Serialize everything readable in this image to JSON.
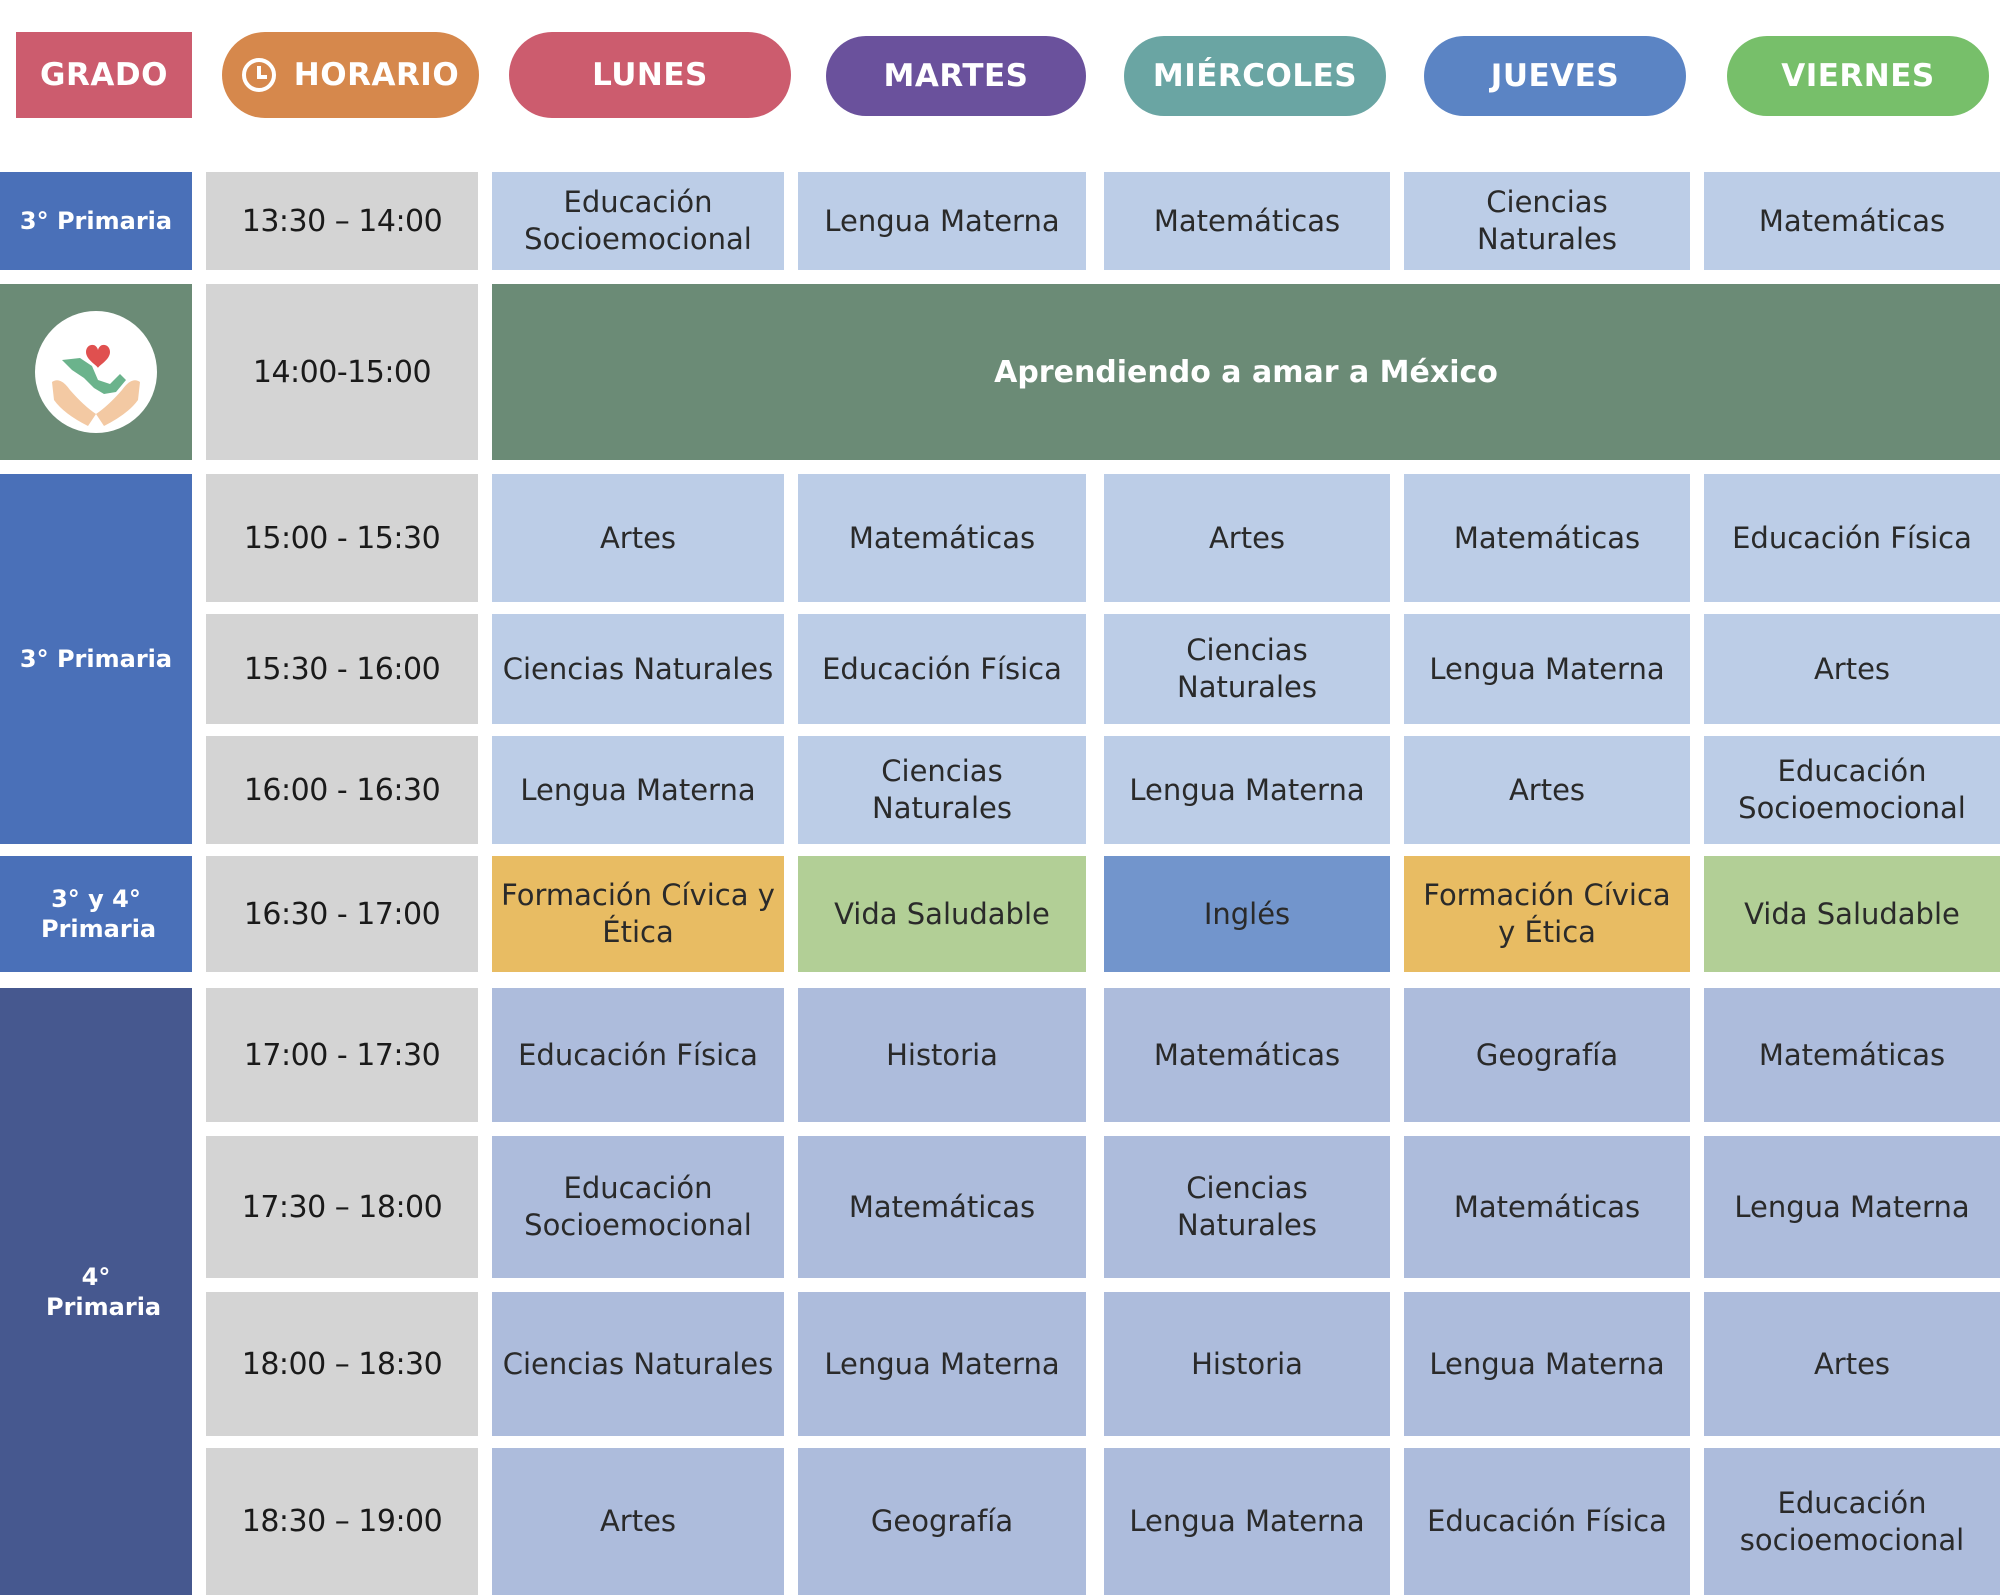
{
  "header": {
    "grado": "GRADO",
    "horario": "HORARIO",
    "days": [
      "LUNES",
      "MARTES",
      "MIÉRCOLES",
      "JUEVES",
      "VIERNES"
    ]
  },
  "colors": {
    "grado": "#cc5c6e",
    "horario": "#d6884c",
    "lunes": "#cc5c6e",
    "martes": "#6a519c",
    "miercoles": "#6aa5a3",
    "jueves": "#5b84c4",
    "viernes": "#77bf6a",
    "grade_3": "#4a70b8",
    "grade_3y4": "#4a70b8",
    "grade_4": "#46588f",
    "cell_3": "#bccde7",
    "cell_4": "#adbcdc",
    "banner": "#6b8b76",
    "civica": "#e8bc63",
    "saludable": "#b2cf96",
    "ingles": "#7295cc"
  },
  "grades": {
    "g1": "3° Primaria",
    "g2": "3° Primaria",
    "g3": "3° y 4° Primaria",
    "g4": "4° Primaria"
  },
  "banner": "Aprendiendo a amar a México",
  "rows": [
    {
      "time": "13:30 – 14:00",
      "cells": [
        "Educación Socioemocional",
        "Lengua Materna",
        "Matemáticas",
        "Ciencias Naturales",
        "Matemáticas"
      ]
    },
    {
      "time": "14:00-15:00",
      "cells": []
    },
    {
      "time": "15:00 - 15:30",
      "cells": [
        "Artes",
        "Matemáticas",
        "Artes",
        "Matemáticas",
        "Educación Física"
      ]
    },
    {
      "time": "15:30 - 16:00",
      "cells": [
        "Ciencias Naturales",
        "Educación Física",
        "Ciencias Naturales",
        "Lengua Materna",
        "Artes"
      ]
    },
    {
      "time": "16:00 - 16:30",
      "cells": [
        "Lengua Materna",
        "Ciencias Naturales",
        "Lengua Materna",
        "Artes",
        "Educación Socioemocional"
      ]
    },
    {
      "time": "16:30 - 17:00",
      "cells": [
        "Formación Cívica y Ética",
        "Vida Saludable",
        "Inglés",
        "Formación Cívica y Ética",
        "Vida Saludable"
      ]
    },
    {
      "time": "17:00 - 17:30",
      "cells": [
        "Educación Física",
        "Historia",
        "Matemáticas",
        "Geografía",
        "Matemáticas"
      ]
    },
    {
      "time": "17:30 – 18:00",
      "cells": [
        "Educación Socioemocional",
        "Matemáticas",
        "Ciencias Naturales",
        "Matemáticas",
        "Lengua Materna"
      ]
    },
    {
      "time": "18:00 – 18:30",
      "cells": [
        "Ciencias Naturales",
        "Lengua Materna",
        "Historia",
        "Lengua Materna",
        "Artes"
      ]
    },
    {
      "time": "18:30 – 19:00",
      "cells": [
        "Artes",
        "Geografía",
        "Lengua Materna",
        "Educación Física",
        "Educación socioemocional"
      ]
    }
  ]
}
